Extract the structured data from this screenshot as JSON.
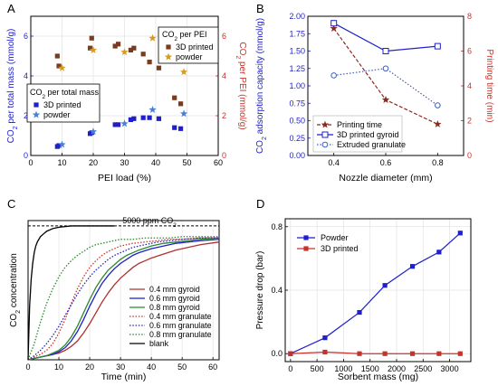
{
  "colors": {
    "blue": "#1f1fcc",
    "blue_light": "#4a7fd8",
    "red_dark": "#8b2a1e",
    "red": "#c8322a",
    "brown": "#7a3b1e",
    "gold": "#d79a1e",
    "black": "#000000"
  },
  "chart_data": [
    {
      "panel": "A",
      "type": "scatter",
      "xlabel": "PEI load (%)",
      "ylabel_left": "CO2 per total mass (mmol/g)",
      "ylabel_right": "CO2 per PEI (mmol/g)",
      "xlim": [
        0,
        60
      ],
      "ylim_left": [
        0,
        7
      ],
      "ylim_right": [
        0,
        7
      ],
      "xticks": [
        0,
        10,
        20,
        30,
        40,
        50,
        60
      ],
      "yticks_left": [
        0,
        2,
        4,
        6
      ],
      "yticks_right": [
        0,
        2,
        4,
        6
      ],
      "legends": [
        {
          "title": "CO2 per total mass",
          "entries": [
            "3D printed",
            "powder"
          ],
          "placement": "middle-left"
        },
        {
          "title": "CO2 per PEI",
          "entries": [
            "3D printed",
            "powder"
          ],
          "placement": "top-right"
        }
      ],
      "series": [
        {
          "name": "3D printed",
          "group": "CO2 per total mass",
          "axis": "left",
          "marker": "square",
          "color": "#1f1fcc",
          "x": [
            8.5,
            9,
            19,
            19.5,
            27,
            28,
            32,
            33,
            36,
            38,
            41,
            46,
            48
          ],
          "y": [
            0.45,
            0.5,
            1.1,
            1.15,
            1.55,
            1.55,
            1.8,
            1.85,
            1.9,
            1.9,
            1.85,
            1.4,
            1.35
          ]
        },
        {
          "name": "powder",
          "group": "CO2 per total mass",
          "axis": "left",
          "marker": "star",
          "color": "#4a7fd8",
          "x": [
            10,
            20,
            30,
            39,
            49
          ],
          "y": [
            0.55,
            1.2,
            1.6,
            2.3,
            2.1
          ]
        },
        {
          "name": "3D printed",
          "group": "CO2 per PEI",
          "axis": "right",
          "marker": "square",
          "color": "#7a3b1e",
          "x": [
            8.5,
            9,
            19,
            19.5,
            27,
            28,
            32,
            33,
            36,
            38,
            41,
            46,
            48
          ],
          "y": [
            5.0,
            4.5,
            5.4,
            5.9,
            5.5,
            5.6,
            5.3,
            5.4,
            5.1,
            4.7,
            4.4,
            2.9,
            2.6
          ]
        },
        {
          "name": "powder",
          "group": "CO2 per PEI",
          "axis": "right",
          "marker": "star",
          "color": "#d79a1e",
          "x": [
            10,
            20,
            30,
            39,
            49
          ],
          "y": [
            4.4,
            5.3,
            5.2,
            5.9,
            4.2
          ]
        }
      ]
    },
    {
      "panel": "B",
      "type": "line",
      "xlabel": "Nozzle diameter (mm)",
      "ylabel_left": "CO2 adsorption capacity (mmol/g)",
      "ylabel_right": "Printing time (min)",
      "xlim": [
        0.3,
        0.9
      ],
      "ylim_left": [
        0,
        2.0
      ],
      "ylim_right": [
        0,
        8
      ],
      "xticks": [
        0.4,
        0.6,
        0.8
      ],
      "yticks_left": [
        0.0,
        0.25,
        0.5,
        0.75,
        1.0,
        1.25,
        1.5,
        1.75,
        2.0
      ],
      "yticks_right": [
        0,
        2,
        4,
        6,
        8
      ],
      "legend_placement": "bottom-left",
      "series": [
        {
          "name": "Printing time",
          "axis": "right",
          "marker": "star",
          "style": "dashed",
          "color": "#8b2a1e",
          "x": [
            0.4,
            0.6,
            0.8
          ],
          "y": [
            7.3,
            3.2,
            1.8
          ]
        },
        {
          "name": "3D printed gyroid",
          "axis": "left",
          "marker": "open-square",
          "style": "solid",
          "color": "#1f1fcc",
          "x": [
            0.4,
            0.6,
            0.8
          ],
          "y": [
            1.9,
            1.5,
            1.57
          ]
        },
        {
          "name": "Extruded granulate",
          "axis": "left",
          "marker": "circle",
          "style": "dotted",
          "color": "#3a5fc8",
          "x": [
            0.4,
            0.6,
            0.8
          ],
          "y": [
            1.15,
            1.25,
            0.72
          ]
        }
      ]
    },
    {
      "panel": "C",
      "type": "line",
      "xlabel": "Time (min)",
      "ylabel": "CO2 concentration",
      "xlim": [
        0,
        62
      ],
      "ylim": [
        0,
        1.04
      ],
      "xticks": [
        0,
        10,
        20,
        30,
        40,
        50,
        60
      ],
      "annotation": "5000 ppm CO2",
      "legend_placement": "bottom-right",
      "series": [
        {
          "name": "0.4 mm gyroid",
          "style": "solid",
          "color": "#b03030",
          "x": [
            0,
            2,
            4,
            6,
            8,
            10,
            12,
            14,
            16,
            18,
            20,
            22,
            24,
            26,
            28,
            30,
            32,
            34,
            36,
            38,
            40,
            44,
            48,
            52,
            56,
            62
          ],
          "y": [
            0,
            0.01,
            0.02,
            0.03,
            0.04,
            0.05,
            0.07,
            0.1,
            0.14,
            0.2,
            0.27,
            0.35,
            0.43,
            0.5,
            0.56,
            0.61,
            0.65,
            0.69,
            0.72,
            0.74,
            0.76,
            0.79,
            0.82,
            0.84,
            0.86,
            0.88
          ]
        },
        {
          "name": "0.6 mm gyroid",
          "style": "solid",
          "color": "#1f1fcc",
          "x": [
            0,
            2,
            4,
            6,
            8,
            10,
            12,
            14,
            16,
            18,
            20,
            22,
            24,
            26,
            28,
            30,
            32,
            34,
            36,
            40,
            44,
            48,
            52,
            56,
            62
          ],
          "y": [
            0,
            0.01,
            0.02,
            0.03,
            0.04,
            0.06,
            0.09,
            0.14,
            0.21,
            0.3,
            0.4,
            0.49,
            0.57,
            0.63,
            0.68,
            0.72,
            0.75,
            0.78,
            0.8,
            0.83,
            0.85,
            0.87,
            0.88,
            0.89,
            0.9
          ]
        },
        {
          "name": "0.8 mm gyroid",
          "style": "solid",
          "color": "#2a8a2a",
          "x": [
            0,
            2,
            4,
            6,
            8,
            10,
            12,
            14,
            16,
            18,
            20,
            22,
            24,
            26,
            28,
            30,
            32,
            34,
            36,
            40,
            44,
            48,
            52,
            56,
            62
          ],
          "y": [
            0,
            0.01,
            0.02,
            0.03,
            0.05,
            0.07,
            0.11,
            0.17,
            0.25,
            0.35,
            0.45,
            0.54,
            0.61,
            0.67,
            0.71,
            0.75,
            0.78,
            0.8,
            0.82,
            0.85,
            0.87,
            0.88,
            0.89,
            0.9,
            0.91
          ]
        },
        {
          "name": "0.4 mm granulate",
          "style": "dotted",
          "color": "#c8322a",
          "x": [
            0,
            2,
            4,
            6,
            8,
            10,
            12,
            14,
            16,
            18,
            20,
            22,
            24,
            26,
            28,
            30,
            34,
            38,
            42,
            46,
            50,
            56,
            62
          ],
          "y": [
            0,
            0.02,
            0.04,
            0.07,
            0.12,
            0.2,
            0.3,
            0.42,
            0.53,
            0.62,
            0.69,
            0.74,
            0.78,
            0.81,
            0.83,
            0.85,
            0.87,
            0.88,
            0.89,
            0.9,
            0.9,
            0.91,
            0.91
          ]
        },
        {
          "name": "0.6 mm granulate",
          "style": "dotted",
          "color": "#1f1fcc",
          "x": [
            0,
            2,
            4,
            6,
            8,
            10,
            12,
            14,
            16,
            18,
            20,
            22,
            24,
            26,
            28,
            30,
            34,
            38,
            42,
            46,
            50,
            56,
            62
          ],
          "y": [
            0,
            0.03,
            0.07,
            0.12,
            0.18,
            0.25,
            0.33,
            0.41,
            0.49,
            0.56,
            0.62,
            0.67,
            0.71,
            0.75,
            0.78,
            0.8,
            0.84,
            0.86,
            0.88,
            0.89,
            0.9,
            0.91,
            0.91
          ]
        },
        {
          "name": "0.8 mm granulate",
          "style": "dotted",
          "color": "#2a8a2a",
          "x": [
            0,
            2,
            4,
            6,
            8,
            10,
            12,
            14,
            16,
            18,
            20,
            22,
            24,
            26,
            28,
            30,
            34,
            38,
            42,
            46,
            50,
            56,
            62
          ],
          "y": [
            0,
            0.12,
            0.28,
            0.42,
            0.53,
            0.62,
            0.69,
            0.74,
            0.78,
            0.81,
            0.84,
            0.86,
            0.87,
            0.88,
            0.89,
            0.9,
            0.9,
            0.91,
            0.91,
            0.91,
            0.92,
            0.92,
            0.92
          ]
        },
        {
          "name": "blank",
          "style": "solid",
          "color": "#000000",
          "x": [
            0,
            0.5,
            1,
            1.5,
            2,
            2.5,
            3,
            4,
            5,
            6,
            8,
            10,
            14,
            20,
            28
          ],
          "y": [
            0,
            0.4,
            0.6,
            0.72,
            0.8,
            0.85,
            0.88,
            0.92,
            0.94,
            0.96,
            0.98,
            0.99,
            1.0,
            1.0,
            1.0
          ]
        }
      ]
    },
    {
      "panel": "D",
      "type": "line",
      "xlabel": "Sorbent mass (mg)",
      "ylabel": "Pressure drop (bar)",
      "xlim": [
        -100,
        3400
      ],
      "ylim": [
        -0.05,
        0.85
      ],
      "xticks": [
        0,
        500,
        1000,
        1500,
        2000,
        2500,
        3000
      ],
      "yticks": [
        0.0,
        0.4,
        0.8
      ],
      "legend_placement": "top-left",
      "series": [
        {
          "name": "Powder",
          "marker": "square",
          "color": "#1f1fcc",
          "x": [
            0,
            650,
            1300,
            1780,
            2300,
            2800,
            3200
          ],
          "y": [
            0.0,
            0.1,
            0.26,
            0.43,
            0.55,
            0.64,
            0.76
          ]
        },
        {
          "name": "3D printed",
          "marker": "square",
          "color": "#c8322a",
          "x": [
            0,
            650,
            1300,
            1780,
            2300,
            2800,
            3200
          ],
          "y": [
            0.0,
            0.01,
            0.0,
            0.0,
            0.0,
            0.0,
            0.0
          ]
        }
      ]
    }
  ]
}
